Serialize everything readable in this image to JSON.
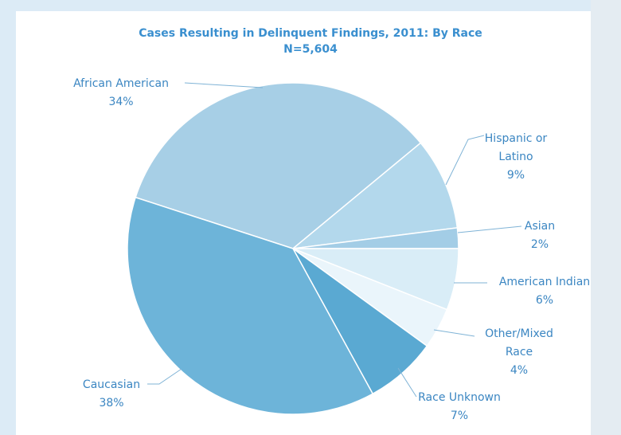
{
  "chart_data": {
    "type": "pie",
    "title": "Cases Resulting in Delinquent Findings, 2011: By Race",
    "subtitle": "N=5,604",
    "categories": [
      "African American",
      "Hispanic or Latino",
      "Asian",
      "American Indian",
      "Other/Mixed Race",
      "Race Unknown",
      "Caucasian"
    ],
    "values": [
      34,
      9,
      2,
      6,
      4,
      7,
      38
    ],
    "value_labels": [
      "34%",
      "9%",
      "2%",
      "6%",
      "4%",
      "7%",
      "38%"
    ],
    "colors": [
      "#a7cfe6",
      "#b3d8ec",
      "#a3cde6",
      "#d9edf7",
      "#eaf5fb",
      "#5aa9d2",
      "#6db4d9"
    ]
  }
}
